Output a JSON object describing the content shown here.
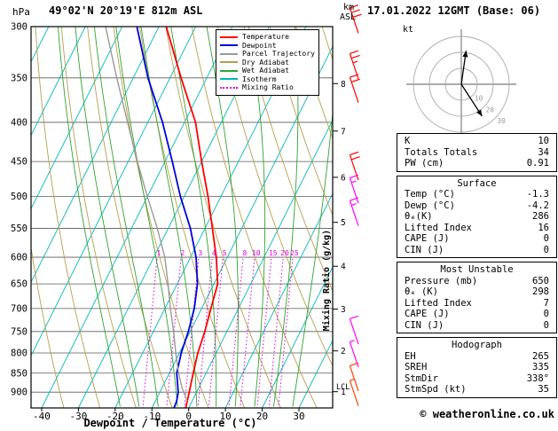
{
  "header": {
    "pressure_unit": "hPa",
    "station": "49°02'N 20°19'E 812m ASL",
    "datetime": "17.01.2022 12GMT (Base: 06)",
    "km_label": "km",
    "asl_label": "ASL"
  },
  "axes": {
    "x_label": "Dewpoint / Temperature (°C)",
    "mixing_axis_label": "Mixing Ratio (g/kg)",
    "pressure_ticks": [
      300,
      350,
      400,
      450,
      500,
      550,
      600,
      650,
      700,
      750,
      800,
      850,
      900
    ],
    "temp_ticks": [
      -40,
      -30,
      -20,
      -10,
      0,
      10,
      20,
      30
    ],
    "km_ticks": [
      1,
      2,
      3,
      4,
      5,
      6,
      7,
      8
    ],
    "lcl_label": "LCL"
  },
  "legend": {
    "items": [
      {
        "label": "Temperature",
        "color": "#ff0000",
        "dash": "solid"
      },
      {
        "label": "Dewpoint",
        "color": "#0000dd",
        "dash": "solid"
      },
      {
        "label": "Parcel Trajectory",
        "color": "#999999",
        "dash": "solid"
      },
      {
        "label": "Dry Adiabat",
        "color": "#b5a04d",
        "dash": "solid"
      },
      {
        "label": "Wet Adiabat",
        "color": "#2fa32f",
        "dash": "solid"
      },
      {
        "label": "Isotherm",
        "color": "#00b8b8",
        "dash": "solid"
      },
      {
        "label": "Mixing Ratio",
        "color": "#dd00dd",
        "dash": "dotted"
      }
    ]
  },
  "chart_data": {
    "type": "line",
    "chart_kind": "skew-t log-p sounding",
    "title": "49°02'N 20°19'E 812m ASL — 17.01.2022 12GMT (Base: 06)",
    "x_axis": {
      "label": "Dewpoint / Temperature (°C)",
      "range": [
        -40,
        40
      ],
      "unit": "°C"
    },
    "y_axis": {
      "label": "hPa",
      "range": [
        300,
        945
      ],
      "scale": "log",
      "unit": "hPa"
    },
    "series": [
      {
        "name": "Temperature",
        "color": "#ff0000",
        "width": 1.8,
        "points": [
          {
            "p": 944,
            "t": -0.8
          },
          {
            "p": 925,
            "t": -1.3
          },
          {
            "p": 900,
            "t": -2.0
          },
          {
            "p": 850,
            "t": -3.5
          },
          {
            "p": 800,
            "t": -5.0
          },
          {
            "p": 750,
            "t": -6.0
          },
          {
            "p": 700,
            "t": -7.5
          },
          {
            "p": 650,
            "t": -9.0
          },
          {
            "p": 600,
            "t": -13.0
          },
          {
            "p": 550,
            "t": -18.0
          },
          {
            "p": 500,
            "t": -23.5
          },
          {
            "p": 450,
            "t": -30.0
          },
          {
            "p": 400,
            "t": -37.0
          },
          {
            "p": 350,
            "t": -47.0
          },
          {
            "p": 300,
            "t": -58.0
          }
        ]
      },
      {
        "name": "Dewpoint",
        "color": "#0000dd",
        "width": 1.8,
        "points": [
          {
            "p": 944,
            "t": -4.0
          },
          {
            "p": 925,
            "t": -4.2
          },
          {
            "p": 900,
            "t": -5.0
          },
          {
            "p": 850,
            "t": -8.0
          },
          {
            "p": 800,
            "t": -9.5
          },
          {
            "p": 750,
            "t": -10.5
          },
          {
            "p": 700,
            "t": -12.0
          },
          {
            "p": 650,
            "t": -14.5
          },
          {
            "p": 600,
            "t": -18.5
          },
          {
            "p": 550,
            "t": -24.0
          },
          {
            "p": 500,
            "t": -31.0
          },
          {
            "p": 450,
            "t": -38.0
          },
          {
            "p": 400,
            "t": -46.0
          },
          {
            "p": 350,
            "t": -56.0
          },
          {
            "p": 300,
            "t": -66.0
          }
        ]
      },
      {
        "name": "Parcel Trajectory",
        "color": "#999999",
        "width": 1.4,
        "points": [
          {
            "p": 925,
            "t": -1.3
          },
          {
            "p": 888,
            "t": -4.6
          },
          {
            "p": 850,
            "t": -7.5
          },
          {
            "p": 800,
            "t": -11.0
          },
          {
            "p": 750,
            "t": -14.5
          },
          {
            "p": 700,
            "t": -18.5
          },
          {
            "p": 650,
            "t": -22.5
          },
          {
            "p": 600,
            "t": -27.0
          },
          {
            "p": 550,
            "t": -33.0
          },
          {
            "p": 500,
            "t": -40.0
          },
          {
            "p": 450,
            "t": -47.5
          },
          {
            "p": 400,
            "t": -55.5
          },
          {
            "p": 350,
            "t": -64.5
          },
          {
            "p": 300,
            "t": -74.5
          }
        ]
      }
    ],
    "isotherms": {
      "min": -100,
      "max": 40,
      "step": 10,
      "color": "#00b8b8"
    },
    "dry_adiabats_theta": [
      -40,
      -30,
      -20,
      -10,
      0,
      10,
      20,
      30,
      40,
      50,
      60,
      70,
      80,
      90,
      100
    ],
    "dry_adiabat_color": "#b5a04d",
    "wet_adiabats_thetaw": [
      -15,
      -10,
      -5,
      0,
      5,
      10,
      15,
      20,
      25,
      30
    ],
    "wet_adiabat_color": "#2fa32f",
    "mixing_ratio": {
      "color": "#dd00dd",
      "label_pressure": 600,
      "lines": [
        {
          "value": 1,
          "t": -28.9
        },
        {
          "value": 2,
          "t": -22.4
        },
        {
          "value": 3,
          "t": -17.6
        },
        {
          "value": 4,
          "t": -13.9
        },
        {
          "value": 5,
          "t": -11.0
        },
        {
          "value": 8,
          "t": -5.5
        },
        {
          "value": 10,
          "t": -2.4
        },
        {
          "value": 15,
          "t": 2.2
        },
        {
          "value": 20,
          "t": 5.4
        },
        {
          "value": 25,
          "t": 8.0
        }
      ]
    },
    "lcl_pressure": 888,
    "wind_barbs": [
      {
        "p": 306,
        "color": "#ff0000",
        "full": 3,
        "half": 0
      },
      {
        "p": 351,
        "color": "#ff0000",
        "full": 2,
        "half": 1
      },
      {
        "p": 377,
        "color": "#ff0000",
        "full": 2,
        "half": 0
      },
      {
        "p": 476,
        "color": "#ff0000",
        "full": 2,
        "half": 0
      },
      {
        "p": 510,
        "color": "#ff00ff",
        "full": 1,
        "half": 1
      },
      {
        "p": 546,
        "color": "#ff00ff",
        "full": 1,
        "half": 1
      },
      {
        "p": 779,
        "color": "#ff00ff",
        "full": 1,
        "half": 0
      },
      {
        "p": 835,
        "color": "#ff00ff",
        "full": 0,
        "half": 1
      },
      {
        "p": 897,
        "color": "#ff4400",
        "full": 1,
        "half": 0
      },
      {
        "p": 938,
        "color": "#ff4400",
        "full": 0,
        "half": 1
      }
    ],
    "hodograph": {
      "unit_label": "kt",
      "rings_kt": [
        10,
        20,
        30
      ],
      "ring_labels": [
        "10",
        "20",
        "30"
      ],
      "vectors_kt": [
        {
          "u": 3,
          "v": -21
        },
        {
          "u": 13,
          "v": 20
        }
      ]
    }
  },
  "panels": [
    {
      "name": "stability-indices",
      "title": null,
      "rows": [
        [
          "K",
          "10"
        ],
        [
          "Totals Totals",
          "34"
        ],
        [
          "PW (cm)",
          "0.91"
        ]
      ]
    },
    {
      "name": "surface",
      "title": "Surface",
      "rows": [
        [
          "Temp (°C)",
          "-1.3"
        ],
        [
          "Dewp (°C)",
          "-4.2"
        ],
        [
          "θₑ(K)",
          "286"
        ],
        [
          "Lifted Index",
          "16"
        ],
        [
          "CAPE (J)",
          "0"
        ],
        [
          "CIN (J)",
          "0"
        ]
      ]
    },
    {
      "name": "most-unstable",
      "title": "Most Unstable",
      "rows": [
        [
          "Pressure (mb)",
          "650"
        ],
        [
          "θₑ (K)",
          "298"
        ],
        [
          "Lifted Index",
          "7"
        ],
        [
          "CAPE (J)",
          "0"
        ],
        [
          "CIN (J)",
          "0"
        ]
      ]
    },
    {
      "name": "hodograph",
      "title": "Hodograph",
      "rows": [
        [
          "EH",
          "265"
        ],
        [
          "SREH",
          "335"
        ],
        [
          "StmDir",
          "338°"
        ],
        [
          "StmSpd (kt)",
          "35"
        ]
      ]
    }
  ],
  "footer": {
    "credit": "© weatheronline.co.uk"
  }
}
